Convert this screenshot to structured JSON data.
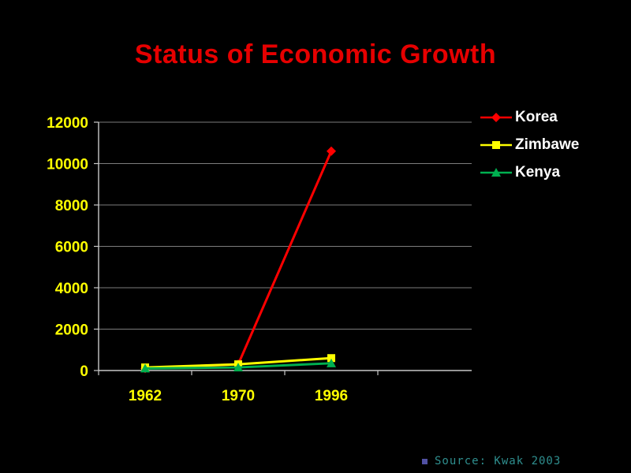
{
  "slide": {
    "title": "Status of Economic Growth",
    "source_text": "Source: Kwak 2003"
  },
  "colors": {
    "background": "#000000",
    "title": "#e60000",
    "axis": "#c8c8c8",
    "grid": "#7d7d7d",
    "axis_label": "#ffff00",
    "legend_text": "#ffffff",
    "source_text": "#2f8f8f",
    "source_bullet": "#5151a3"
  },
  "chart_data": {
    "type": "line",
    "categories": [
      "1962",
      "1970",
      "1996"
    ],
    "series": [
      {
        "name": "Korea",
        "color": "#ff0000",
        "marker": "diamond",
        "values": [
          100,
          300,
          10600
        ]
      },
      {
        "name": "Zimbawe",
        "color": "#ffff00",
        "marker": "square",
        "values": [
          150,
          300,
          600
        ]
      },
      {
        "name": "Kenya",
        "color": "#00b050",
        "marker": "triangle",
        "values": [
          100,
          150,
          350
        ]
      }
    ],
    "title": "Status of Economic Growth",
    "xlabel": "",
    "ylabel": "",
    "ylim": [
      0,
      12000
    ],
    "ytick_step": 2000,
    "grid": true,
    "legend_position": "top-right"
  }
}
